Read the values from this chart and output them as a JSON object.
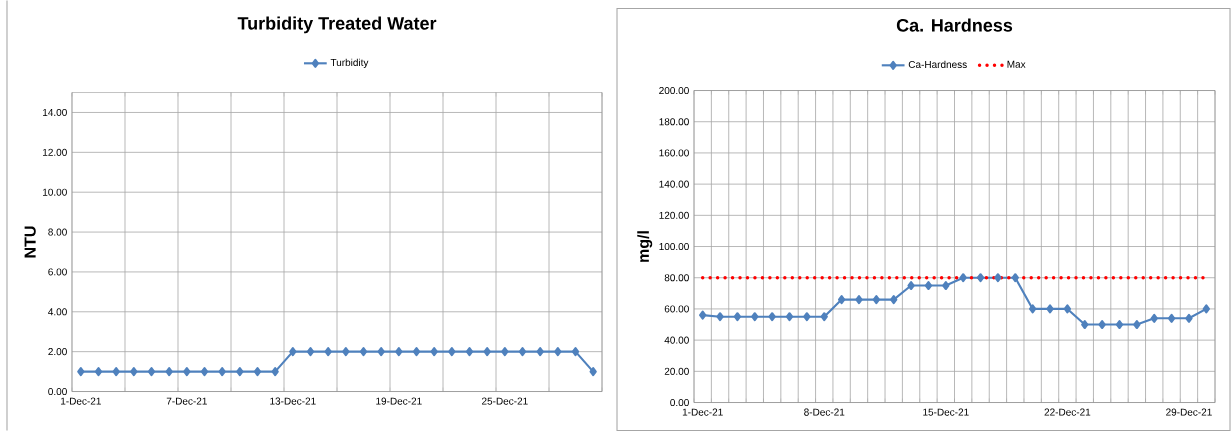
{
  "chart_data": [
    {
      "type": "line",
      "title": "Turbidity Treated Water",
      "ylabel": "NTU",
      "categories": [
        "1-Dec-21",
        null,
        null,
        null,
        null,
        null,
        "7-Dec-21",
        null,
        null,
        null,
        null,
        null,
        "13-Dec-21",
        null,
        null,
        null,
        null,
        null,
        "19-Dec-21",
        null,
        null,
        null,
        null,
        null,
        "25-Dec-21",
        null,
        null,
        null,
        null,
        null
      ],
      "series": [
        {
          "name": "Turbidity",
          "color": "#4f81bd",
          "marker": "diamond",
          "line_style": "solid",
          "values": [
            1,
            1,
            1,
            1,
            1,
            1,
            1,
            1,
            1,
            1,
            1,
            1,
            2,
            2,
            2,
            2,
            2,
            2,
            2,
            2,
            2,
            2,
            2,
            2,
            2,
            2,
            2,
            2,
            2,
            1
          ]
        }
      ],
      "ylim": [
        0,
        15
      ],
      "yticks": [
        {
          "value": 0,
          "label": "0.00"
        },
        {
          "value": 2,
          "label": "2.00"
        },
        {
          "value": 4,
          "label": "4.00"
        },
        {
          "value": 6,
          "label": "6.00"
        },
        {
          "value": 8,
          "label": "8.00"
        },
        {
          "value": 10,
          "label": "10.00"
        },
        {
          "value": 12,
          "label": "12.00"
        },
        {
          "value": 14,
          "label": "14.00"
        }
      ],
      "grid": true,
      "legend": "top"
    },
    {
      "type": "line",
      "title": "Ca. Hardness",
      "ylabel": "mg/l",
      "categories": [
        "1-Dec-21",
        null,
        null,
        null,
        null,
        null,
        null,
        "8-Dec-21",
        null,
        null,
        null,
        null,
        null,
        null,
        "15-Dec-21",
        null,
        null,
        null,
        null,
        null,
        null,
        "22-Dec-21",
        null,
        null,
        null,
        null,
        null,
        null,
        "29-Dec-21",
        null
      ],
      "series": [
        {
          "name": "Ca-Hardness",
          "color": "#4f81bd",
          "marker": "diamond",
          "line_style": "solid",
          "values": [
            56,
            55,
            55,
            55,
            55,
            55,
            55,
            55,
            66,
            66,
            66,
            66,
            75,
            75,
            75,
            80,
            80,
            80,
            80,
            60,
            60,
            60,
            50,
            50,
            50,
            50,
            54,
            54,
            54,
            60
          ]
        },
        {
          "name": "Max",
          "color": "#ff0000",
          "marker": "none",
          "line_style": "dotted",
          "values": [
            80,
            80,
            80,
            80,
            80,
            80,
            80,
            80,
            80,
            80,
            80,
            80,
            80,
            80,
            80,
            80,
            80,
            80,
            80,
            80,
            80,
            80,
            80,
            80,
            80,
            80,
            80,
            80,
            80,
            80
          ]
        }
      ],
      "ylim": [
        0,
        200
      ],
      "yticks": [
        {
          "value": 0,
          "label": "0.00"
        },
        {
          "value": 20,
          "label": "20.00"
        },
        {
          "value": 40,
          "label": "40.00"
        },
        {
          "value": 60,
          "label": "60.00"
        },
        {
          "value": 80,
          "label": "80.00"
        },
        {
          "value": 100,
          "label": "100.00"
        },
        {
          "value": 120,
          "label": "120.00"
        },
        {
          "value": 140,
          "label": "140.00"
        },
        {
          "value": 160,
          "label": "160.00"
        },
        {
          "value": 180,
          "label": "180.00"
        },
        {
          "value": 200,
          "label": "200.00"
        }
      ],
      "grid": true,
      "legend": "top"
    }
  ]
}
